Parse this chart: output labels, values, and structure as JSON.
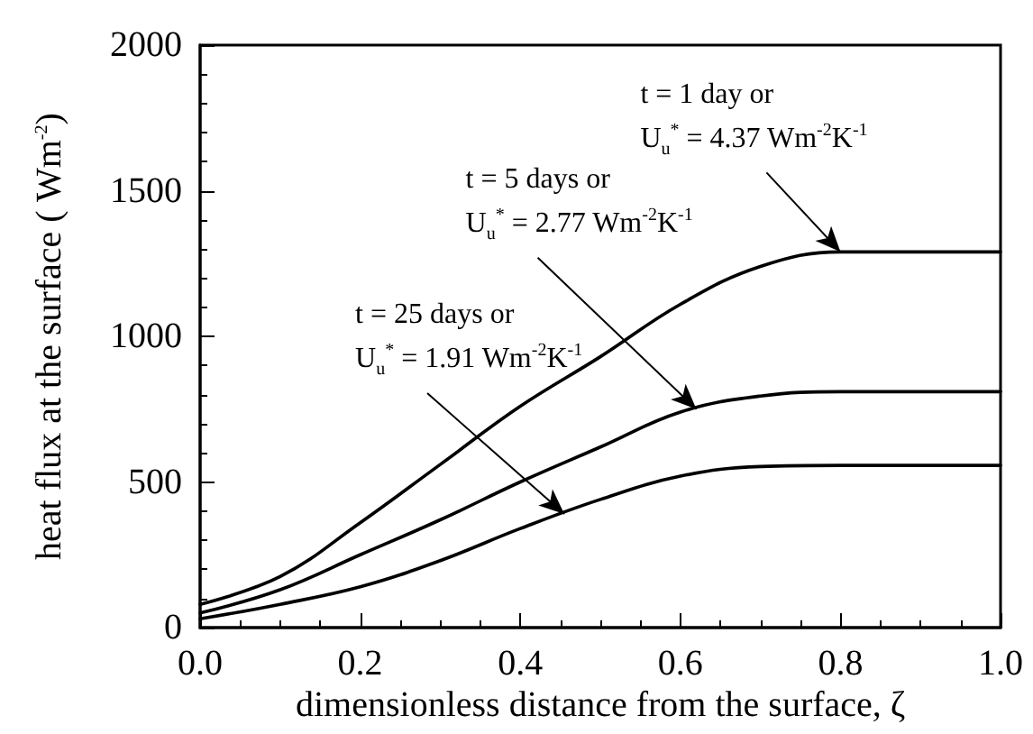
{
  "chart_data": {
    "type": "line",
    "xlabel": "dimensionless distance from the surface, ζ",
    "ylabel": "heat flux at the surface ( Wm$^{-2}$)",
    "x": [
      0,
      0.1,
      0.2,
      0.3,
      0.4,
      0.5,
      0.6,
      0.7,
      0.8,
      0.9,
      1.0
    ],
    "series": [
      {
        "color": "#000000",
        "values": [
          80,
          175,
          360,
          560,
          760,
          930,
          1110,
          1240,
          1290,
          1290,
          1290
        ]
      },
      {
        "color": "#000000",
        "values": [
          50,
          130,
          250,
          370,
          500,
          620,
          740,
          795,
          810,
          810,
          810
        ]
      },
      {
        "color": "#000000",
        "values": [
          30,
          80,
          140,
          230,
          340,
          440,
          520,
          553,
          557,
          557,
          557
        ]
      }
    ],
    "xlim": [
      0,
      1
    ],
    "xticks": [
      {
        "value": 0,
        "label": "0.0"
      },
      {
        "value": 0.2,
        "label": "0.2"
      },
      {
        "value": 0.4,
        "label": "0.4"
      },
      {
        "value": 0.6,
        "label": "0.6"
      },
      {
        "value": 0.8,
        "label": "0.8"
      },
      {
        "value": 1,
        "label": "1.0"
      }
    ],
    "ylim": [
      0,
      2000
    ],
    "yticks": [
      0,
      500,
      1000,
      1500,
      2000
    ],
    "grid": false,
    "marker": "none",
    "line_style": "solid",
    "annotations": [
      {
        "text": "t = 1 day or\nU$_{u}$$^{*}$ = 4.37 Wm$^{-2}$K$^{-1}$",
        "x": 0.8,
        "y": 1290
      },
      {
        "text": "t = 5 days or\nU$_{u}$$^{*}$ = 2.77 Wm$^{-2}$K$^{-1}$",
        "x": 0.62,
        "y": 750
      },
      {
        "text": "t = 25 days or\nU$_{u}$$^{*}$ = 1.91 Wm$^{-2}$K$^{-1}$",
        "x": 0.455,
        "y": 390
      }
    ]
  }
}
